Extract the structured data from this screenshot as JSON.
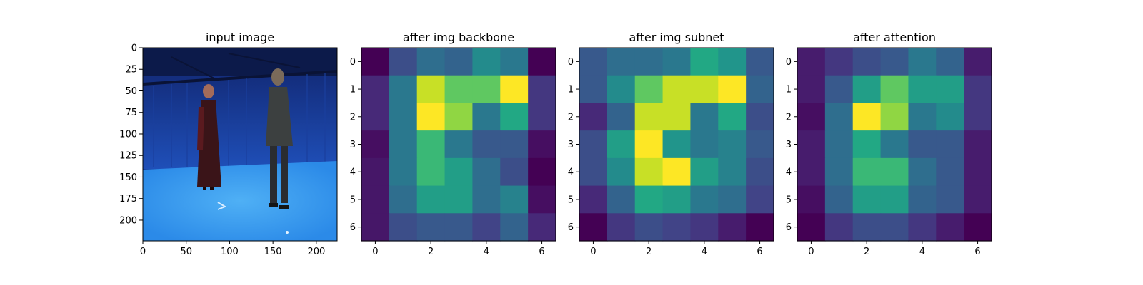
{
  "chart_data": [
    {
      "type": "image",
      "title": "input image",
      "x_ticks": [
        0,
        50,
        100,
        150,
        200
      ],
      "y_ticks": [
        0,
        25,
        50,
        75,
        100,
        125,
        150,
        175,
        200
      ],
      "xlim": [
        0,
        224
      ],
      "ylim": [
        224,
        0
      ]
    },
    {
      "type": "heatmap",
      "title": "after img backbone",
      "x_ticks": [
        0,
        2,
        4,
        6
      ],
      "y_ticks": [
        0,
        1,
        2,
        3,
        4,
        5,
        6
      ],
      "values": [
        [
          0.0,
          0.3,
          0.45,
          0.4,
          0.6,
          0.5,
          0.0
        ],
        [
          0.15,
          0.5,
          0.95,
          0.85,
          0.85,
          1.0,
          0.2
        ],
        [
          0.15,
          0.5,
          1.0,
          0.9,
          0.5,
          0.75,
          0.2
        ],
        [
          0.05,
          0.5,
          0.8,
          0.5,
          0.35,
          0.35,
          0.05
        ],
        [
          0.08,
          0.5,
          0.8,
          0.7,
          0.45,
          0.3,
          0.0
        ],
        [
          0.08,
          0.45,
          0.7,
          0.7,
          0.45,
          0.55,
          0.05
        ],
        [
          0.08,
          0.3,
          0.35,
          0.35,
          0.25,
          0.4,
          0.15
        ]
      ]
    },
    {
      "type": "heatmap",
      "title": "after img subnet",
      "x_ticks": [
        0,
        2,
        4,
        6
      ],
      "y_ticks": [
        0,
        1,
        2,
        3,
        4,
        5,
        6
      ],
      "values": [
        [
          0.35,
          0.45,
          0.45,
          0.5,
          0.75,
          0.65,
          0.35
        ],
        [
          0.35,
          0.6,
          0.85,
          0.95,
          0.95,
          1.0,
          0.4
        ],
        [
          0.15,
          0.4,
          0.95,
          0.95,
          0.5,
          0.75,
          0.3
        ],
        [
          0.3,
          0.7,
          1.0,
          0.65,
          0.5,
          0.55,
          0.35
        ],
        [
          0.3,
          0.6,
          0.95,
          1.0,
          0.7,
          0.55,
          0.3
        ],
        [
          0.15,
          0.4,
          0.75,
          0.7,
          0.5,
          0.45,
          0.25
        ],
        [
          0.0,
          0.2,
          0.3,
          0.25,
          0.2,
          0.1,
          0.0
        ]
      ]
    },
    {
      "type": "heatmap",
      "title": "after attention",
      "x_ticks": [
        0,
        2,
        4,
        6
      ],
      "y_ticks": [
        0,
        1,
        2,
        3,
        4,
        5,
        6
      ],
      "values": [
        [
          0.1,
          0.2,
          0.3,
          0.35,
          0.5,
          0.4,
          0.1
        ],
        [
          0.1,
          0.35,
          0.7,
          0.85,
          0.7,
          0.7,
          0.2
        ],
        [
          0.05,
          0.45,
          1.0,
          0.9,
          0.5,
          0.6,
          0.2
        ],
        [
          0.1,
          0.45,
          0.75,
          0.5,
          0.35,
          0.35,
          0.1
        ],
        [
          0.1,
          0.45,
          0.8,
          0.8,
          0.45,
          0.35,
          0.1
        ],
        [
          0.05,
          0.4,
          0.7,
          0.7,
          0.4,
          0.35,
          0.1
        ],
        [
          0.0,
          0.2,
          0.3,
          0.3,
          0.2,
          0.1,
          0.0
        ]
      ]
    }
  ]
}
